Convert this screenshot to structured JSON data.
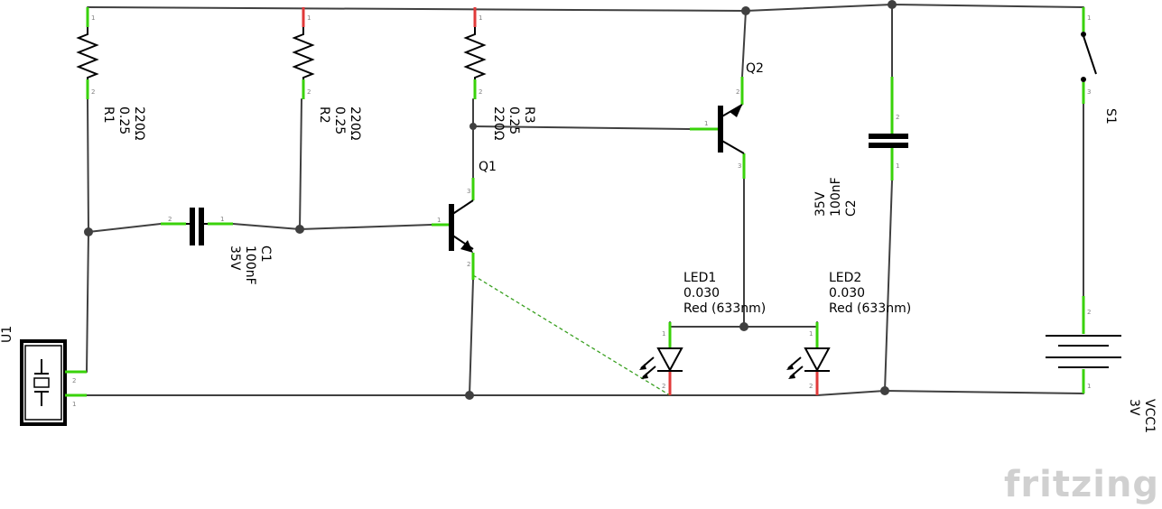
{
  "components": {
    "R1": {
      "designator": "R1",
      "power": "0.25",
      "resistance": "220Ω"
    },
    "R2": {
      "designator": "R2",
      "power": "0.25",
      "resistance": "220Ω"
    },
    "R3": {
      "designator": "R3",
      "power": "0.25",
      "resistance": "220Ω"
    },
    "C1": {
      "designator": "C1",
      "capacitance": "100nF",
      "voltage": "35V"
    },
    "C2": {
      "designator": "C2",
      "capacitance": "100nF",
      "voltage": "35V"
    },
    "Q1": {
      "designator": "Q1"
    },
    "Q2": {
      "designator": "Q2"
    },
    "LED1": {
      "designator": "LED1",
      "current": "0.030",
      "color": "Red (633nm)"
    },
    "LED2": {
      "designator": "LED2",
      "current": "0.030",
      "color": "Red (633nm)"
    },
    "S1": {
      "designator": "S1"
    },
    "U1": {
      "designator": "U1"
    },
    "VCC1": {
      "designator": "VCC1",
      "voltage": "3V"
    }
  },
  "pins": {
    "p1": "1",
    "p2": "2",
    "p3": "3"
  },
  "branding": {
    "logo": "fritzing"
  },
  "colors": {
    "wire": "#404040",
    "pin_ok": "#39d20a",
    "pin_unconnected": "#e03a3a",
    "ratsnest": "#39a020"
  }
}
